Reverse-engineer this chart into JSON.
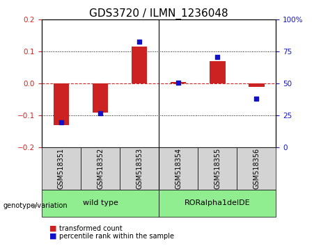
{
  "title": "GDS3720 / ILMN_1236048",
  "categories": [
    "GSM518351",
    "GSM518352",
    "GSM518353",
    "GSM518354",
    "GSM518355",
    "GSM518356"
  ],
  "bar_values": [
    -0.13,
    -0.09,
    0.115,
    0.005,
    0.07,
    -0.01
  ],
  "dot_values": [
    20,
    27,
    83,
    51,
    71,
    38
  ],
  "bar_color": "#cc2222",
  "dot_color": "#1111cc",
  "ylim_left": [
    -0.2,
    0.2
  ],
  "ylim_right": [
    0,
    100
  ],
  "yticks_left": [
    -0.2,
    -0.1,
    0,
    0.1,
    0.2
  ],
  "yticks_right": [
    0,
    25,
    50,
    75,
    100
  ],
  "dotted_lines": [
    -0.1,
    0.1
  ],
  "group_box_color": "#90ee90",
  "sample_box_color": "#d3d3d3",
  "legend_items": [
    {
      "label": "transformed count",
      "color": "#cc2222"
    },
    {
      "label": "percentile rank within the sample",
      "color": "#1111cc"
    }
  ],
  "bar_width": 0.4,
  "background_color": "#ffffff",
  "title_fontsize": 11,
  "axis_tick_fontsize": 7.5,
  "label_fontsize": 7,
  "group_label_fontsize": 8,
  "sample_label_fontsize": 7
}
